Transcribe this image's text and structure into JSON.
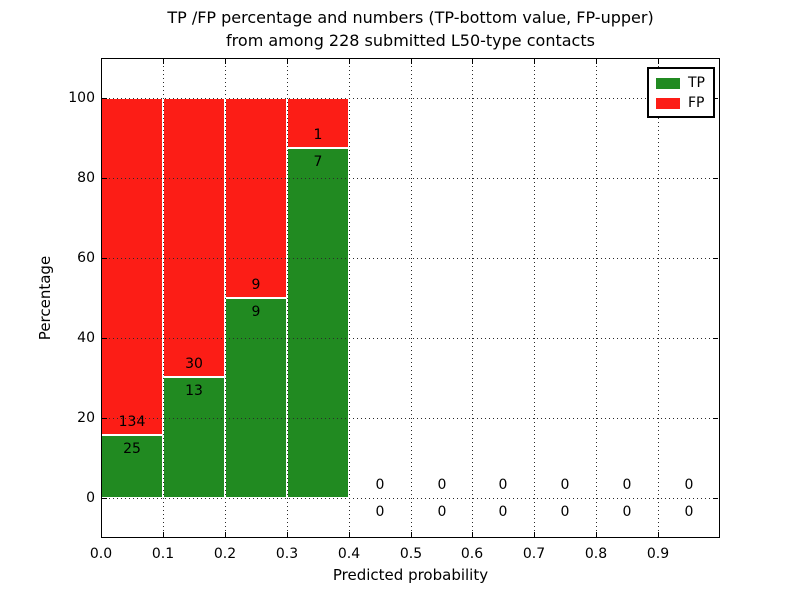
{
  "title": {
    "line1": "TP /FP percentage and numbers (TP-bottom value, FP-upper)",
    "line2": "from among 228 submitted L50-type contacts"
  },
  "axes": {
    "xlabel": "Predicted probability",
    "ylabel": "Percentage",
    "x_tick_labels": [
      "0.0",
      "0.1",
      "0.2",
      "0.3",
      "0.4",
      "0.5",
      "0.6",
      "0.7",
      "0.8",
      "0.9"
    ],
    "y_tick_labels": [
      "0",
      "20",
      "40",
      "60",
      "80",
      "100"
    ],
    "y_tick_values": [
      0,
      20,
      40,
      60,
      80,
      100
    ]
  },
  "legend": {
    "items": [
      {
        "label": "TP",
        "color": "#218a21"
      },
      {
        "label": "FP",
        "color": "#fc1d16"
      }
    ]
  },
  "chart_data": {
    "type": "bar",
    "stacked": true,
    "title": "TP /FP percentage and numbers (TP-bottom value, FP-upper) from among 228 submitted L50-type contacts",
    "xlabel": "Predicted probability",
    "ylabel": "Percentage",
    "xlim": [
      0.0,
      1.0
    ],
    "ylim": [
      -10,
      110
    ],
    "grid": "dotted",
    "legend_position": "upper right",
    "total_contacts": 228,
    "bin_edges": [
      0.0,
      0.1,
      0.2,
      0.3,
      0.4,
      0.5,
      0.6,
      0.7,
      0.8,
      0.9,
      1.0
    ],
    "series": [
      {
        "name": "TP",
        "color": "#218a21",
        "counts": [
          25,
          13,
          9,
          7,
          0,
          0,
          0,
          0,
          0,
          0
        ],
        "percent": [
          15.7,
          30.2,
          50.0,
          87.5,
          0,
          0,
          0,
          0,
          0,
          0
        ]
      },
      {
        "name": "FP",
        "color": "#fc1d16",
        "counts": [
          134,
          30,
          9,
          1,
          0,
          0,
          0,
          0,
          0,
          0
        ],
        "percent": [
          84.3,
          69.8,
          50.0,
          12.5,
          0,
          0,
          0,
          0,
          0,
          0
        ]
      }
    ]
  }
}
